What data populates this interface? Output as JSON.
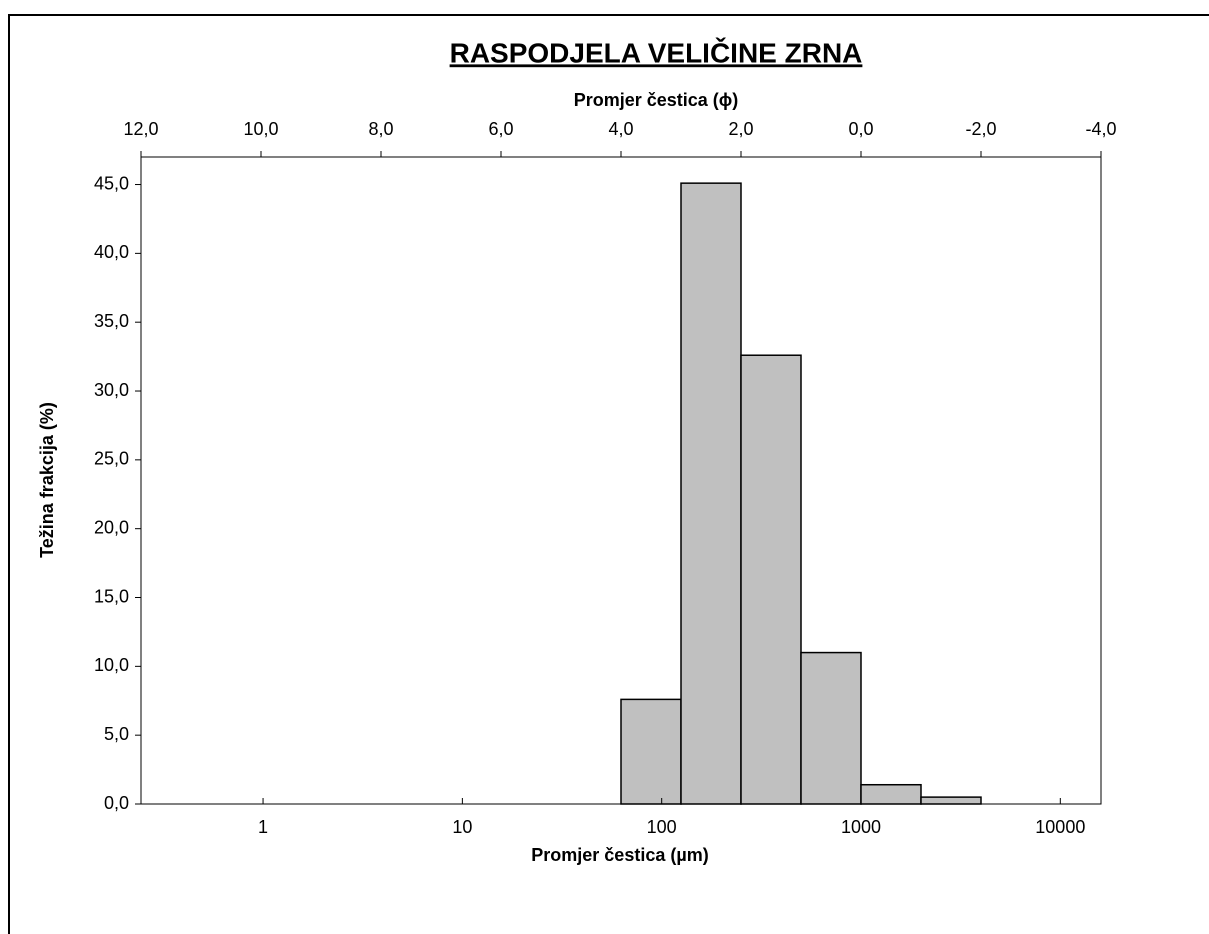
{
  "chart_data": {
    "type": "histogram",
    "title": "RASPODJELA VELIČINE ZRNA",
    "x_label": "Promjer čestica (µm)",
    "x2_label": "Promjer čestica (ϕ)",
    "y_label": "Težina frakcija (%)",
    "bins": [
      62.5,
      125,
      250,
      500,
      1000,
      2000,
      4000
    ],
    "values": [
      7.6,
      45.1,
      32.6,
      11.0,
      1.4,
      0.5
    ],
    "color": "#c0c0c0",
    "xscale": "log",
    "xlim": [
      0.244140625,
      16000
    ],
    "xticks": [
      1,
      10,
      100,
      1000,
      10000
    ],
    "x2lim": [
      12,
      -4
    ],
    "x2ticks": [
      {
        "value": 12,
        "label": "12,0"
      },
      {
        "value": 10,
        "label": "10,0"
      },
      {
        "value": 8,
        "label": "8,0"
      },
      {
        "value": 6,
        "label": "6,0"
      },
      {
        "value": 4,
        "label": "4,0"
      },
      {
        "value": 2,
        "label": "2,0"
      },
      {
        "value": 0,
        "label": "0,0"
      },
      {
        "value": -2,
        "label": "-2,0"
      },
      {
        "value": -4,
        "label": "-4,0"
      }
    ],
    "ylim": [
      0,
      47
    ],
    "yticks": [
      {
        "value": 0,
        "label": "0,0"
      },
      {
        "value": 5,
        "label": "5,0"
      },
      {
        "value": 10,
        "label": "10,0"
      },
      {
        "value": 15,
        "label": "15,0"
      },
      {
        "value": 20,
        "label": "20,0"
      },
      {
        "value": 25,
        "label": "25,0"
      },
      {
        "value": 30,
        "label": "30,0"
      },
      {
        "value": 35,
        "label": "35,0"
      },
      {
        "value": 40,
        "label": "40,0"
      },
      {
        "value": 45,
        "label": "45,0"
      }
    ],
    "grid": false
  }
}
